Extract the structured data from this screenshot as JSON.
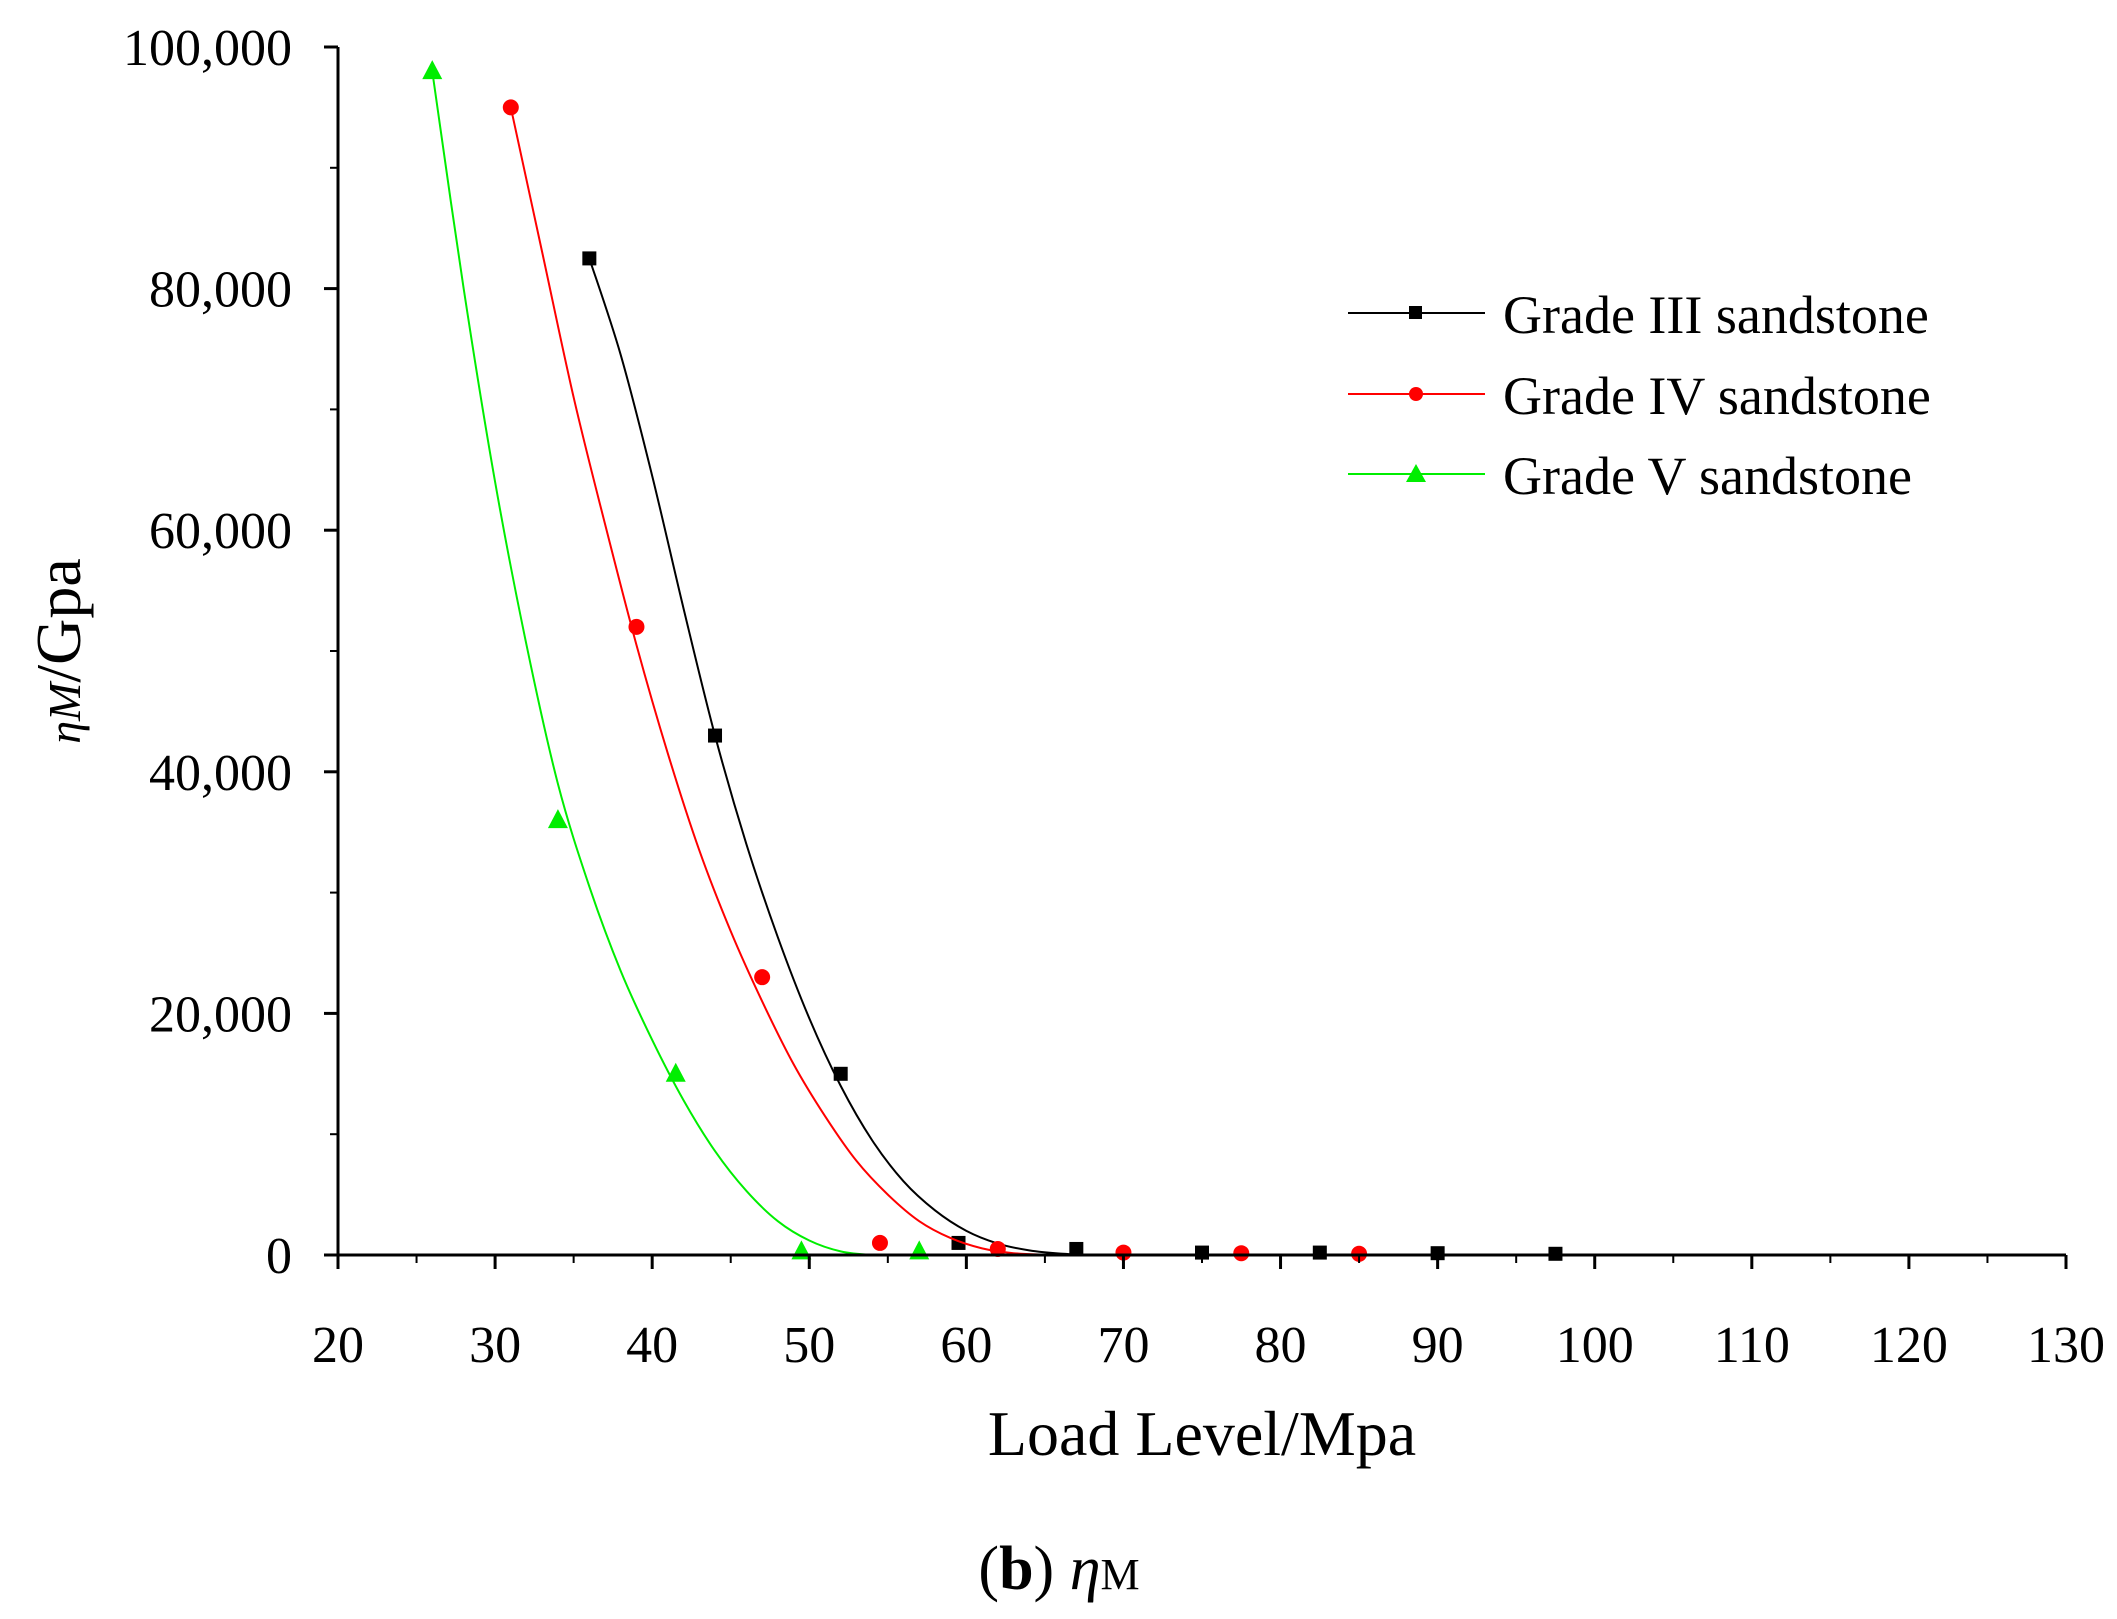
{
  "chart_data": {
    "type": "scatter",
    "title": "",
    "xlabel": "Load Level/Mpa",
    "ylabel_symbol": "ηM",
    "ylabel_unit": "/Gpa",
    "xlim": [
      20,
      130
    ],
    "ylim": [
      0,
      100000
    ],
    "xticks": [
      20,
      30,
      40,
      50,
      60,
      70,
      80,
      90,
      100,
      110,
      120,
      130
    ],
    "yticks": [
      0,
      20000,
      40000,
      60000,
      80000,
      100000
    ],
    "ytick_labels": [
      "0",
      "20,000",
      "40,000",
      "60,000",
      "80,000",
      "100,000"
    ],
    "grid": false,
    "legend_position": "top-right",
    "series": [
      {
        "name": "Grade III sandstone",
        "color": "#000000",
        "marker": "square",
        "x": [
          36,
          44,
          52,
          59.5,
          67,
          75,
          82.5,
          90,
          97.5
        ],
        "y": [
          82500,
          43000,
          15000,
          1000,
          500,
          200,
          200,
          150,
          100
        ],
        "fit_x": [
          36,
          38,
          40,
          42,
          44,
          46,
          48,
          50,
          52,
          54,
          56,
          58,
          60,
          62,
          64,
          66,
          68,
          70,
          72
        ],
        "fit_y": [
          82500,
          74500,
          64500,
          53500,
          43000,
          34000,
          26300,
          19600,
          14000,
          9500,
          6100,
          3700,
          2000,
          950,
          380,
          110,
          20,
          0,
          0
        ]
      },
      {
        "name": "Grade IV sandstone",
        "color": "#ff0000",
        "marker": "circle",
        "x": [
          31,
          39,
          47,
          54.5,
          62,
          70,
          77.5,
          85
        ],
        "y": [
          95000,
          52000,
          23000,
          1000,
          500,
          200,
          150,
          100
        ],
        "fit_x": [
          31,
          33,
          35,
          37,
          39,
          41,
          43,
          45,
          47,
          49,
          51,
          53,
          55,
          57,
          59,
          61,
          63,
          65,
          67,
          70,
          75,
          80,
          85
        ],
        "fit_y": [
          95000,
          83000,
          71000,
          60500,
          50500,
          41500,
          33500,
          26800,
          21000,
          15800,
          11500,
          7800,
          5000,
          2800,
          1400,
          550,
          150,
          30,
          0,
          0,
          0,
          0,
          0
        ]
      },
      {
        "name": "Grade V sandstone",
        "color": "#00ee00",
        "marker": "triangle",
        "x": [
          26,
          34,
          41.5,
          49.5,
          57
        ],
        "y": [
          98000,
          36000,
          15000,
          300,
          300
        ],
        "fit_x": [
          26,
          28,
          30,
          32,
          34,
          36,
          38,
          40,
          42,
          44,
          46,
          48,
          50,
          52,
          54,
          56,
          58
        ],
        "fit_y": [
          98000,
          80000,
          64000,
          50500,
          39000,
          30500,
          23500,
          17800,
          12800,
          8600,
          5300,
          2800,
          1200,
          300,
          0,
          0,
          0
        ]
      }
    ]
  },
  "caption": {
    "letter": "(b)",
    "symbol": "η",
    "subscript": "M"
  }
}
